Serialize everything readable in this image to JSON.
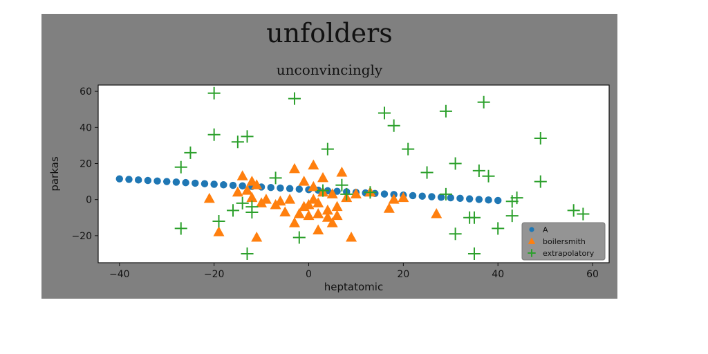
{
  "figure_title": "unfolders",
  "chart_data": {
    "type": "scatter",
    "title": "unconvincingly",
    "xlabel": "heptatomic",
    "ylabel": "parkas",
    "xlim": [
      -44.5,
      63.5
    ],
    "ylim": [
      -35,
      63.5
    ],
    "xticks": [
      -40,
      -20,
      0,
      20,
      40,
      60
    ],
    "yticks": [
      -20,
      0,
      20,
      40,
      60
    ],
    "grid": false,
    "legend_position": "lower-right",
    "series": [
      {
        "name": "A",
        "marker": "circle",
        "color": "#1f77b4",
        "x": [
          -40,
          -38,
          -36,
          -34,
          -32,
          -30,
          -28,
          -26,
          -24,
          -22,
          -20,
          -18,
          -16,
          -14,
          -12,
          -10,
          -8,
          -6,
          -4,
          -2,
          0,
          2,
          4,
          6,
          8,
          10,
          12,
          14,
          16,
          18,
          20,
          22,
          24,
          26,
          28,
          30,
          32,
          34,
          36,
          38,
          40
        ],
        "y": [
          11.5,
          11.2,
          10.9,
          10.6,
          10.3,
          10.0,
          9.7,
          9.4,
          9.1,
          8.8,
          8.5,
          8.2,
          7.9,
          7.6,
          7.3,
          7.0,
          6.7,
          6.4,
          6.1,
          5.8,
          5.5,
          5.2,
          4.9,
          4.6,
          4.3,
          4.0,
          3.7,
          3.4,
          3.1,
          2.8,
          2.5,
          2.2,
          1.9,
          1.6,
          1.3,
          1.0,
          0.7,
          0.4,
          0.1,
          -0.2,
          -0.5
        ]
      },
      {
        "name": "boilersmith",
        "marker": "triangle",
        "color": "#ff7f0e",
        "x": [
          -21,
          -19,
          -15,
          -14,
          -13,
          -12,
          -12,
          -11,
          -11,
          -10,
          -9,
          -7,
          -6,
          -5,
          -4,
          -3,
          -3,
          -2,
          -1,
          -1,
          0,
          0,
          1,
          1,
          1,
          2,
          2,
          2,
          3,
          3,
          4,
          4,
          5,
          5,
          6,
          6,
          7,
          8,
          9,
          10,
          13,
          17,
          18,
          20,
          27
        ],
        "y": [
          0.5,
          -18,
          4,
          13,
          5,
          10,
          1,
          8,
          -21,
          -2,
          0,
          -3,
          -1,
          -7,
          0,
          -13,
          17,
          -8,
          -4,
          10,
          -9,
          -3,
          19,
          7,
          0,
          -17,
          -8,
          -2,
          12,
          4,
          -10,
          -6,
          -13,
          3,
          -4,
          -9,
          15,
          1,
          -21,
          3,
          4,
          -5,
          0,
          1,
          -8
        ]
      },
      {
        "name": "extrapolatory",
        "marker": "plus",
        "color": "#2ca02c",
        "x": [
          -27,
          -27,
          -25,
          -20,
          -20,
          -19,
          -16,
          -15,
          -14,
          -13,
          -13,
          -12,
          -12,
          -7,
          -3,
          -2,
          3,
          4,
          7,
          8,
          13,
          16,
          18,
          21,
          25,
          29,
          29,
          31,
          31,
          34,
          35,
          35,
          36,
          37,
          38,
          40,
          43,
          43,
          44,
          49,
          49,
          56,
          58
        ],
        "y": [
          18,
          -16,
          26,
          59,
          36,
          -12,
          -6,
          32,
          -2,
          35,
          -30,
          -4,
          -7,
          12,
          56,
          -21,
          5,
          28,
          8,
          3,
          4,
          48,
          41,
          28,
          15,
          49,
          3,
          20,
          -19,
          -10,
          -10,
          -30,
          16,
          54,
          13,
          -16,
          -1,
          -9,
          1,
          34,
          10,
          -6,
          -8
        ]
      }
    ]
  }
}
